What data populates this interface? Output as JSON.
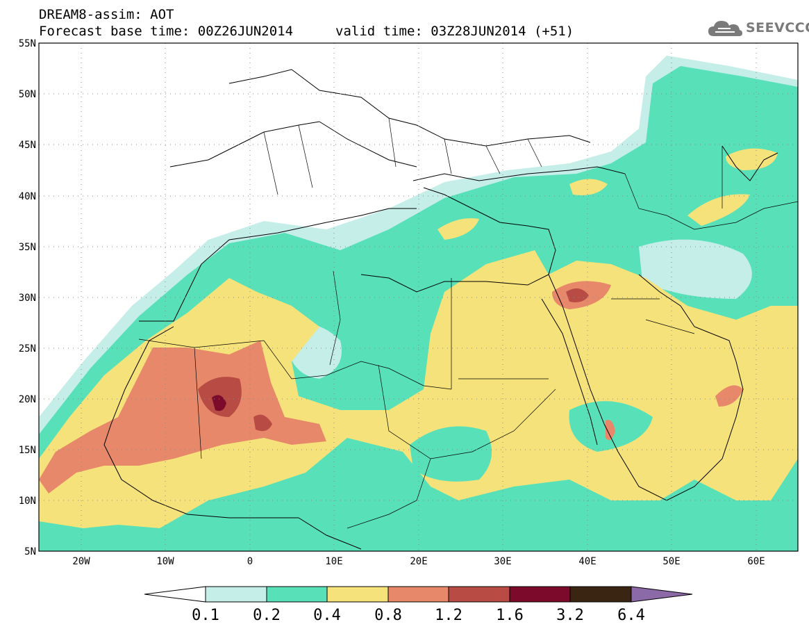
{
  "header": {
    "title_line_1": "DREAM8-assim: AOT",
    "title_line_2": "Forecast base time: 00Z26JUN2014",
    "valid_time": "valid time: 03Z28JUN2014 (+51)",
    "logo_text": "SEEVCCC",
    "logo_icon": "cloud-icon"
  },
  "map": {
    "region": "North Africa, Europe, Middle East",
    "lon_range": [
      -25,
      65
    ],
    "lat_range": [
      5,
      55
    ],
    "lat_labels": [
      "55N",
      "50N",
      "45N",
      "40N",
      "35N",
      "30N",
      "25N",
      "20N",
      "15N",
      "10N",
      "5N"
    ],
    "lon_labels": [
      "20W",
      "10W",
      "0",
      "10E",
      "20E",
      "30E",
      "40E",
      "50E",
      "60E"
    ],
    "grid": "dotted",
    "field": "AOT"
  },
  "colorbar": {
    "labels": [
      "0.1",
      "0.2",
      "0.4",
      "0.8",
      "1.2",
      "1.6",
      "3.2",
      "6.4"
    ],
    "colors": {
      "under": "#ffffff",
      "c1": "#c5eee8",
      "c2": "#58e0b8",
      "c3": "#f6e27a",
      "c4": "#e8886a",
      "c5": "#b84c44",
      "c6": "#7c0a2a",
      "c7": "#3a2412",
      "over": "#8c6aa8"
    }
  }
}
